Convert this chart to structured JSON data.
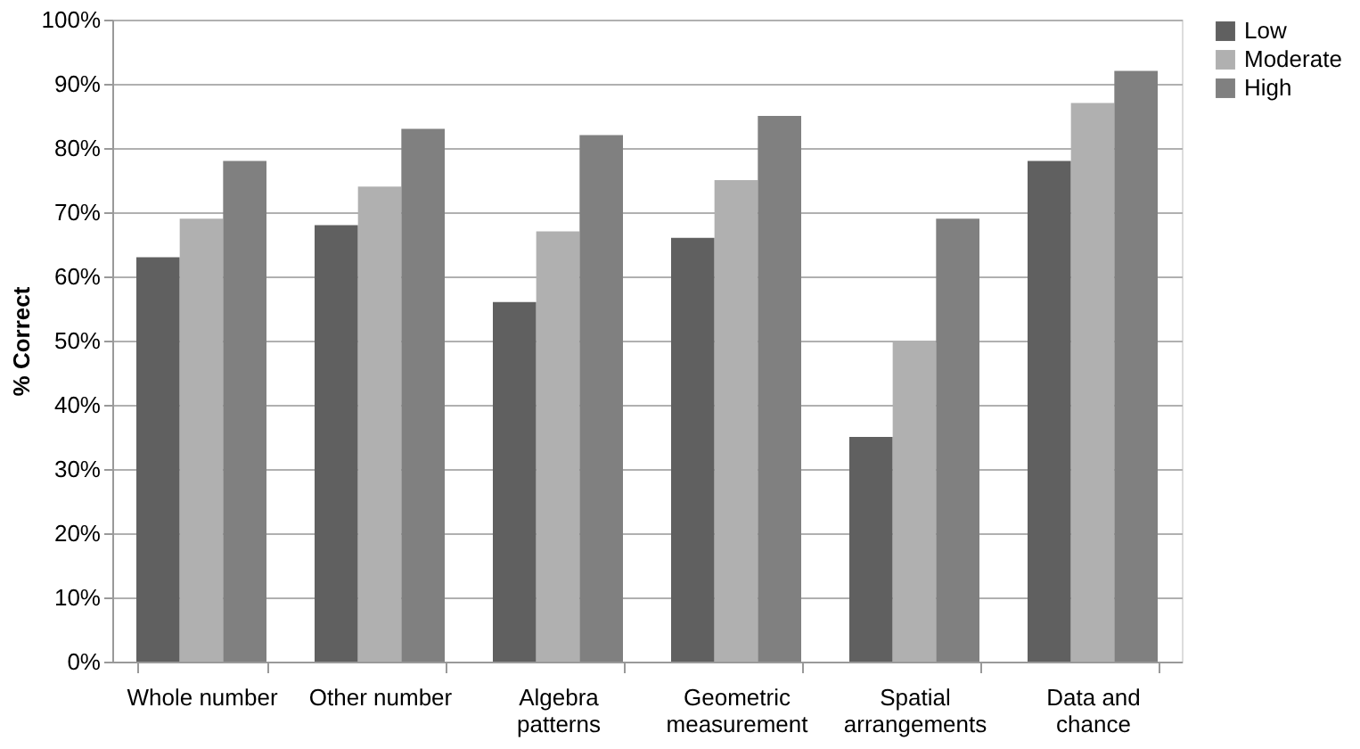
{
  "chart_data": {
    "type": "bar",
    "ylabel": "% Correct",
    "categories": [
      "Whole number",
      "Other number",
      "Algebra patterns",
      "Geometric measurement",
      "Spatial arrangements",
      "Data and chance"
    ],
    "series": [
      {
        "name": "Low",
        "color": "#606060",
        "values": [
          63,
          68,
          56,
          66,
          35,
          78
        ]
      },
      {
        "name": "Moderate",
        "color": "#b0b0b0",
        "values": [
          69,
          74,
          67,
          75,
          50,
          87
        ]
      },
      {
        "name": "High",
        "color": "#808080",
        "values": [
          78,
          83,
          82,
          85,
          69,
          92
        ]
      }
    ],
    "ylim": [
      0,
      100
    ],
    "yticks": [
      {
        "value": 0,
        "label": "0%"
      },
      {
        "value": 10,
        "label": "10%"
      },
      {
        "value": 20,
        "label": "20%"
      },
      {
        "value": 30,
        "label": "30%"
      },
      {
        "value": 40,
        "label": "40%"
      },
      {
        "value": 50,
        "label": "50%"
      },
      {
        "value": 60,
        "label": "60%"
      },
      {
        "value": 70,
        "label": "70%"
      },
      {
        "value": 80,
        "label": "80%"
      },
      {
        "value": 90,
        "label": "90%"
      },
      {
        "value": 100,
        "label": "100%"
      }
    ],
    "grid": "y",
    "legend": "right"
  }
}
